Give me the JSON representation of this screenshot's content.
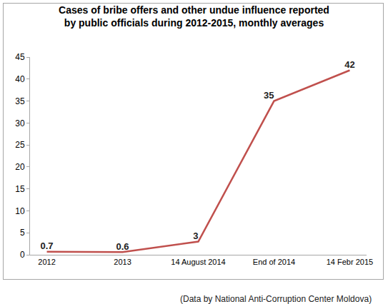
{
  "chart_data": {
    "type": "line",
    "title": "Cases of bribe offers and other undue influence reported by public officials during 2012-2015, monthly averages",
    "categories": [
      "2012",
      "2013",
      "14 August 2014",
      "End of 2014",
      "14 Febr 2015"
    ],
    "values": [
      0.7,
      0.6,
      3,
      35,
      42
    ],
    "color": "#c0504d",
    "ylim": [
      0,
      45
    ],
    "yticks": [
      0,
      5,
      10,
      15,
      20,
      25,
      30,
      35,
      40,
      45
    ],
    "grid": false,
    "data_labels": true,
    "annotations": [
      "(Data by National Anti-Corruption Center Moldova)"
    ]
  }
}
